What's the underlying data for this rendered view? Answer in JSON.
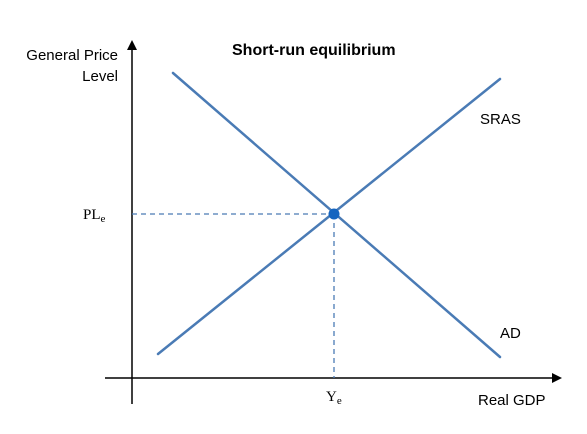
{
  "diagram": {
    "title": "Short-run equilibrium",
    "y_axis_label_line1": "General Price",
    "y_axis_label_line2": "Level",
    "x_axis_label": "Real GDP",
    "price_label_main": "PL",
    "price_label_sub": "e",
    "output_label_main": "Y",
    "output_label_sub": "e",
    "curves": [
      {
        "name": "SRAS",
        "slope": "upward"
      },
      {
        "name": "AD",
        "slope": "downward"
      }
    ],
    "colors": {
      "curve": "#4a7bb5",
      "equilibrium_point": "#1565c0",
      "axis": "#000000",
      "text": "#000000"
    }
  }
}
